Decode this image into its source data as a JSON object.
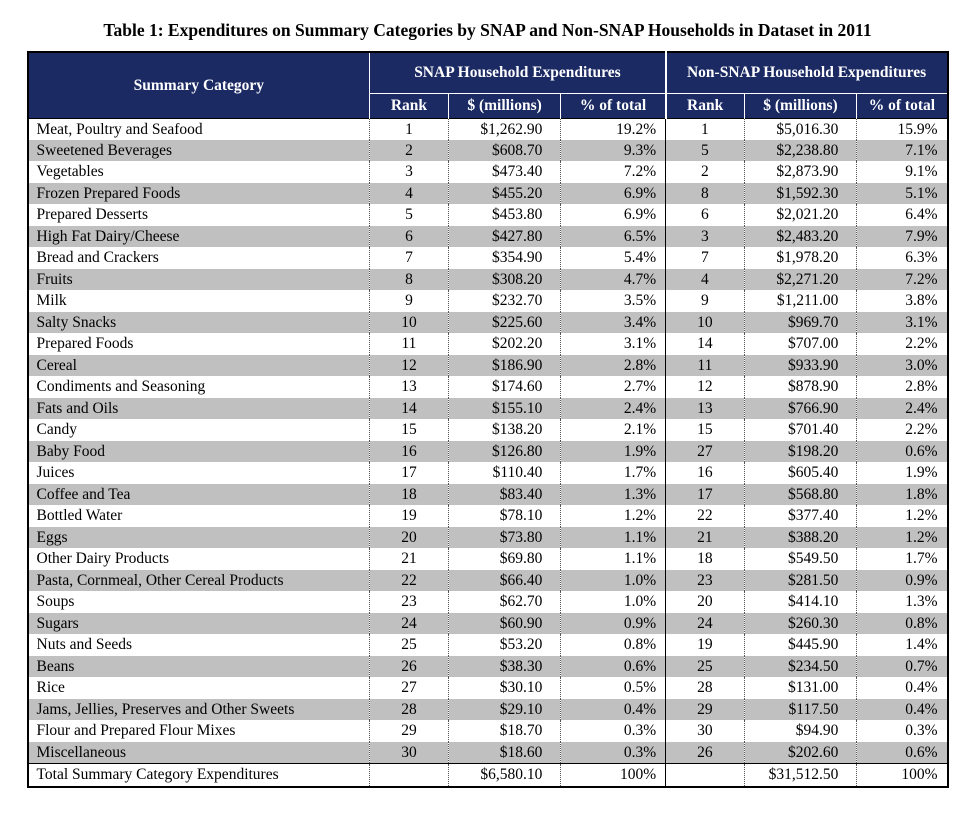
{
  "title": "Table 1: Expenditures on Summary Categories by SNAP and Non-SNAP Households in Dataset in 2011",
  "colors": {
    "header_bg": "#1b2a63",
    "header_text": "#ffffff",
    "alt_row_bg": "#c0c0c0",
    "border": "#000000"
  },
  "table": {
    "headers": {
      "category": "Summary Category",
      "snap_group": "SNAP Household Expenditures",
      "nonsnap_group": "Non-SNAP Household Expenditures",
      "rank": "Rank",
      "dollars": "$ (millions)",
      "pct": "% of total"
    },
    "rows": [
      [
        "Meat, Poultry and Seafood",
        "1",
        "$1,262.90",
        "19.2%",
        "1",
        "$5,016.30",
        "15.9%"
      ],
      [
        "Sweetened Beverages",
        "2",
        "$608.70",
        "9.3%",
        "5",
        "$2,238.80",
        "7.1%"
      ],
      [
        "Vegetables",
        "3",
        "$473.40",
        "7.2%",
        "2",
        "$2,873.90",
        "9.1%"
      ],
      [
        "Frozen Prepared Foods",
        "4",
        "$455.20",
        "6.9%",
        "8",
        "$1,592.30",
        "5.1%"
      ],
      [
        "Prepared Desserts",
        "5",
        "$453.80",
        "6.9%",
        "6",
        "$2,021.20",
        "6.4%"
      ],
      [
        "High Fat Dairy/Cheese",
        "6",
        "$427.80",
        "6.5%",
        "3",
        "$2,483.20",
        "7.9%"
      ],
      [
        "Bread and Crackers",
        "7",
        "$354.90",
        "5.4%",
        "7",
        "$1,978.20",
        "6.3%"
      ],
      [
        "Fruits",
        "8",
        "$308.20",
        "4.7%",
        "4",
        "$2,271.20",
        "7.2%"
      ],
      [
        "Milk",
        "9",
        "$232.70",
        "3.5%",
        "9",
        "$1,211.00",
        "3.8%"
      ],
      [
        "Salty Snacks",
        "10",
        "$225.60",
        "3.4%",
        "10",
        "$969.70",
        "3.1%"
      ],
      [
        "Prepared Foods",
        "11",
        "$202.20",
        "3.1%",
        "14",
        "$707.00",
        "2.2%"
      ],
      [
        "Cereal",
        "12",
        "$186.90",
        "2.8%",
        "11",
        "$933.90",
        "3.0%"
      ],
      [
        "Condiments and Seasoning",
        "13",
        "$174.60",
        "2.7%",
        "12",
        "$878.90",
        "2.8%"
      ],
      [
        "Fats and Oils",
        "14",
        "$155.10",
        "2.4%",
        "13",
        "$766.90",
        "2.4%"
      ],
      [
        "Candy",
        "15",
        "$138.20",
        "2.1%",
        "15",
        "$701.40",
        "2.2%"
      ],
      [
        "Baby Food",
        "16",
        "$126.80",
        "1.9%",
        "27",
        "$198.20",
        "0.6%"
      ],
      [
        "Juices",
        "17",
        "$110.40",
        "1.7%",
        "16",
        "$605.40",
        "1.9%"
      ],
      [
        "Coffee and Tea",
        "18",
        "$83.40",
        "1.3%",
        "17",
        "$568.80",
        "1.8%"
      ],
      [
        "Bottled Water",
        "19",
        "$78.10",
        "1.2%",
        "22",
        "$377.40",
        "1.2%"
      ],
      [
        "Eggs",
        "20",
        "$73.80",
        "1.1%",
        "21",
        "$388.20",
        "1.2%"
      ],
      [
        "Other Dairy Products",
        "21",
        "$69.80",
        "1.1%",
        "18",
        "$549.50",
        "1.7%"
      ],
      [
        "Pasta, Cornmeal, Other Cereal Products",
        "22",
        "$66.40",
        "1.0%",
        "23",
        "$281.50",
        "0.9%"
      ],
      [
        "Soups",
        "23",
        "$62.70",
        "1.0%",
        "20",
        "$414.10",
        "1.3%"
      ],
      [
        "Sugars",
        "24",
        "$60.90",
        "0.9%",
        "24",
        "$260.30",
        "0.8%"
      ],
      [
        "Nuts and Seeds",
        "25",
        "$53.20",
        "0.8%",
        "19",
        "$445.90",
        "1.4%"
      ],
      [
        "Beans",
        "26",
        "$38.30",
        "0.6%",
        "25",
        "$234.50",
        "0.7%"
      ],
      [
        "Rice",
        "27",
        "$30.10",
        "0.5%",
        "28",
        "$131.00",
        "0.4%"
      ],
      [
        "Jams, Jellies, Preserves and Other Sweets",
        "28",
        "$29.10",
        "0.4%",
        "29",
        "$117.50",
        "0.4%"
      ],
      [
        "Flour and Prepared Flour Mixes",
        "29",
        "$18.70",
        "0.3%",
        "30",
        "$94.90",
        "0.3%"
      ],
      [
        "Miscellaneous",
        "30",
        "$18.60",
        "0.3%",
        "26",
        "$202.60",
        "0.6%"
      ]
    ],
    "total": [
      "Total Summary Category Expenditures",
      "",
      "$6,580.10",
      "100%",
      "",
      "$31,512.50",
      "100%"
    ]
  }
}
